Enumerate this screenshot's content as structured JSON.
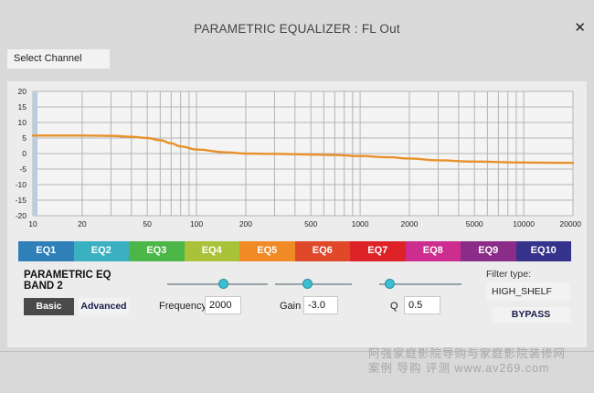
{
  "window": {
    "title": "PARAMETRIC EQUALIZER : FL Out",
    "close_glyph": "✕"
  },
  "channel": {
    "select_label": "Select Channel"
  },
  "chart_data": {
    "type": "line",
    "x_scale": "log",
    "x_ticks": [
      10,
      20,
      50,
      100,
      200,
      500,
      1000,
      2000,
      5000,
      10000,
      20000
    ],
    "x_tick_labels": [
      "10",
      "20",
      "50",
      "100",
      "200",
      "500",
      "1000",
      "2000",
      "5000",
      "10000",
      "20000"
    ],
    "xlim": [
      10,
      20000
    ],
    "y_ticks": [
      20,
      15,
      10,
      5,
      0,
      -5,
      -10,
      -15,
      -20
    ],
    "y_tick_labels": [
      "20",
      "15",
      "10",
      "5",
      "0",
      "-5",
      "-10",
      "-15",
      "-20"
    ],
    "ylim": [
      -20,
      20
    ],
    "grid": true,
    "series": [
      {
        "name": "response",
        "color": "#e8912a",
        "points": [
          [
            10,
            5.8
          ],
          [
            20,
            5.8
          ],
          [
            30,
            5.7
          ],
          [
            40,
            5.4
          ],
          [
            50,
            5.0
          ],
          [
            60,
            4.3
          ],
          [
            70,
            3.3
          ],
          [
            80,
            2.3
          ],
          [
            100,
            1.3
          ],
          [
            150,
            0.4
          ],
          [
            200,
            0.0
          ],
          [
            300,
            -0.1
          ],
          [
            500,
            -0.3
          ],
          [
            700,
            -0.5
          ],
          [
            1000,
            -0.8
          ],
          [
            1500,
            -1.2
          ],
          [
            2000,
            -1.6
          ],
          [
            3000,
            -2.2
          ],
          [
            5000,
            -2.6
          ],
          [
            10000,
            -2.9
          ],
          [
            20000,
            -3.0
          ]
        ]
      }
    ]
  },
  "bands": {
    "active_index": 1,
    "items": [
      {
        "label": "EQ1",
        "color": "#2f7fb8"
      },
      {
        "label": "EQ2",
        "color": "#3ab0c0"
      },
      {
        "label": "EQ3",
        "color": "#4cb648"
      },
      {
        "label": "EQ4",
        "color": "#a9c23a"
      },
      {
        "label": "EQ5",
        "color": "#ef8a25"
      },
      {
        "label": "EQ6",
        "color": "#e0482a"
      },
      {
        "label": "EQ7",
        "color": "#dd2327"
      },
      {
        "label": "EQ8",
        "color": "#cc2d8f"
      },
      {
        "label": "EQ9",
        "color": "#8b2d88"
      },
      {
        "label": "EQ10",
        "color": "#36338c"
      }
    ]
  },
  "band_panel": {
    "title_line1": "PARAMETRIC EQ",
    "title_line2": "BAND 2",
    "basic_label": "Basic",
    "advanced_label": "Advanced"
  },
  "params": {
    "frequency": {
      "label": "Frequency",
      "value": "2000",
      "slider_fraction": 0.55
    },
    "gain": {
      "label": "Gain",
      "value": "-3.0",
      "slider_fraction": 0.42
    },
    "q": {
      "label": "Q",
      "value": "0.5",
      "slider_fraction": 0.12
    }
  },
  "filter": {
    "label": "Filter type:",
    "value": "HIGH_SHELF",
    "bypass_label": "BYPASS"
  },
  "watermark": {
    "line1": "阿强家庭影院导购与家庭影院装修网",
    "line2": "案例 导购 评测 www.av269.com"
  }
}
